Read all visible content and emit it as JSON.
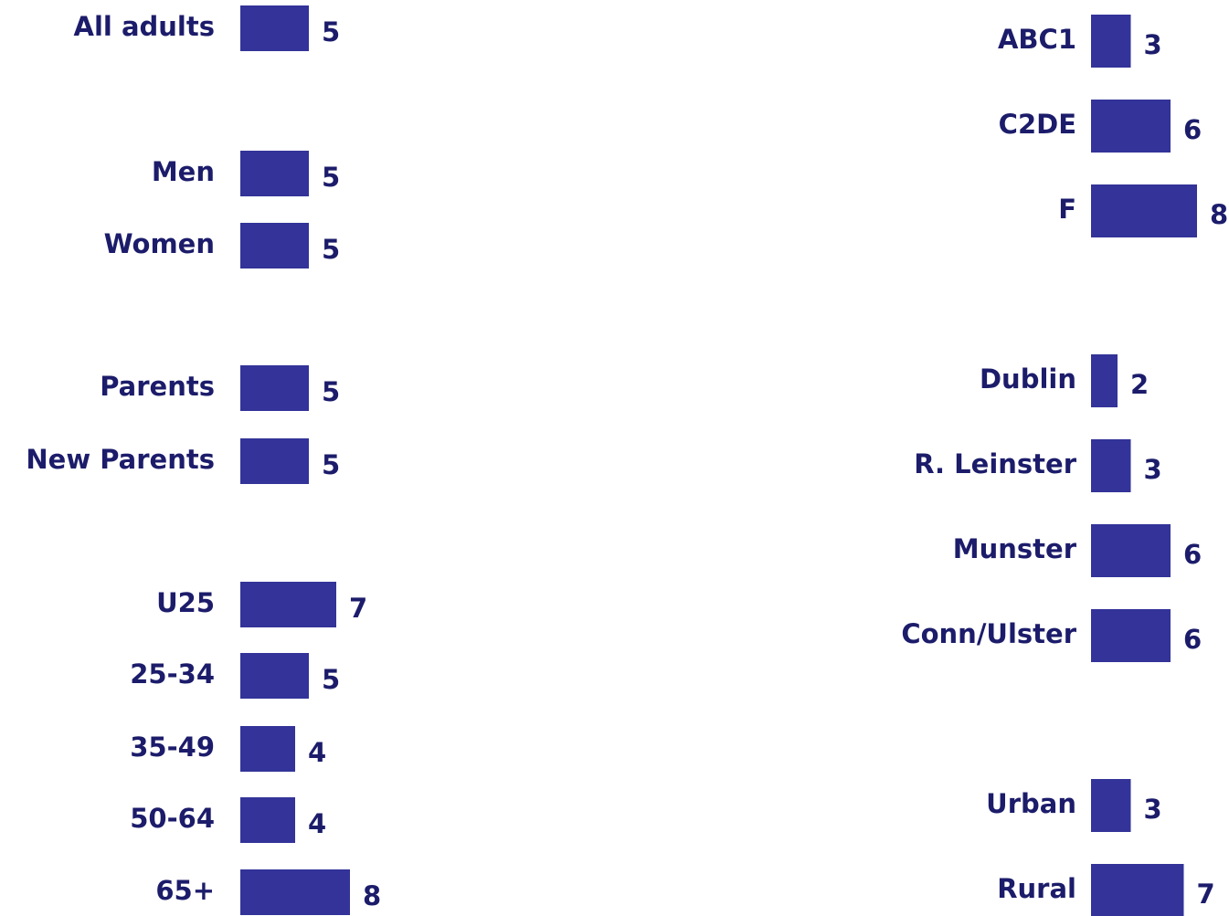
{
  "chart_data": [
    {
      "type": "bar",
      "orientation": "horizontal",
      "color": "#333399",
      "categories": [
        "All adults",
        "Men",
        "Women",
        "Parents",
        "New Parents",
        "U25",
        "25-34",
        "35-49",
        "50-64",
        "65+"
      ],
      "values": [
        5,
        5,
        5,
        5,
        5,
        7,
        5,
        4,
        4,
        8
      ]
    },
    {
      "type": "bar",
      "orientation": "horizontal",
      "color": "#333399",
      "categories": [
        "ABC1",
        "C2DE",
        "F",
        "Dublin",
        "R. Leinster",
        "Munster",
        "Conn/Ulster",
        "Urban",
        "Rural"
      ],
      "values": [
        3,
        6,
        8,
        2,
        3,
        6,
        6,
        3,
        7
      ]
    }
  ]
}
